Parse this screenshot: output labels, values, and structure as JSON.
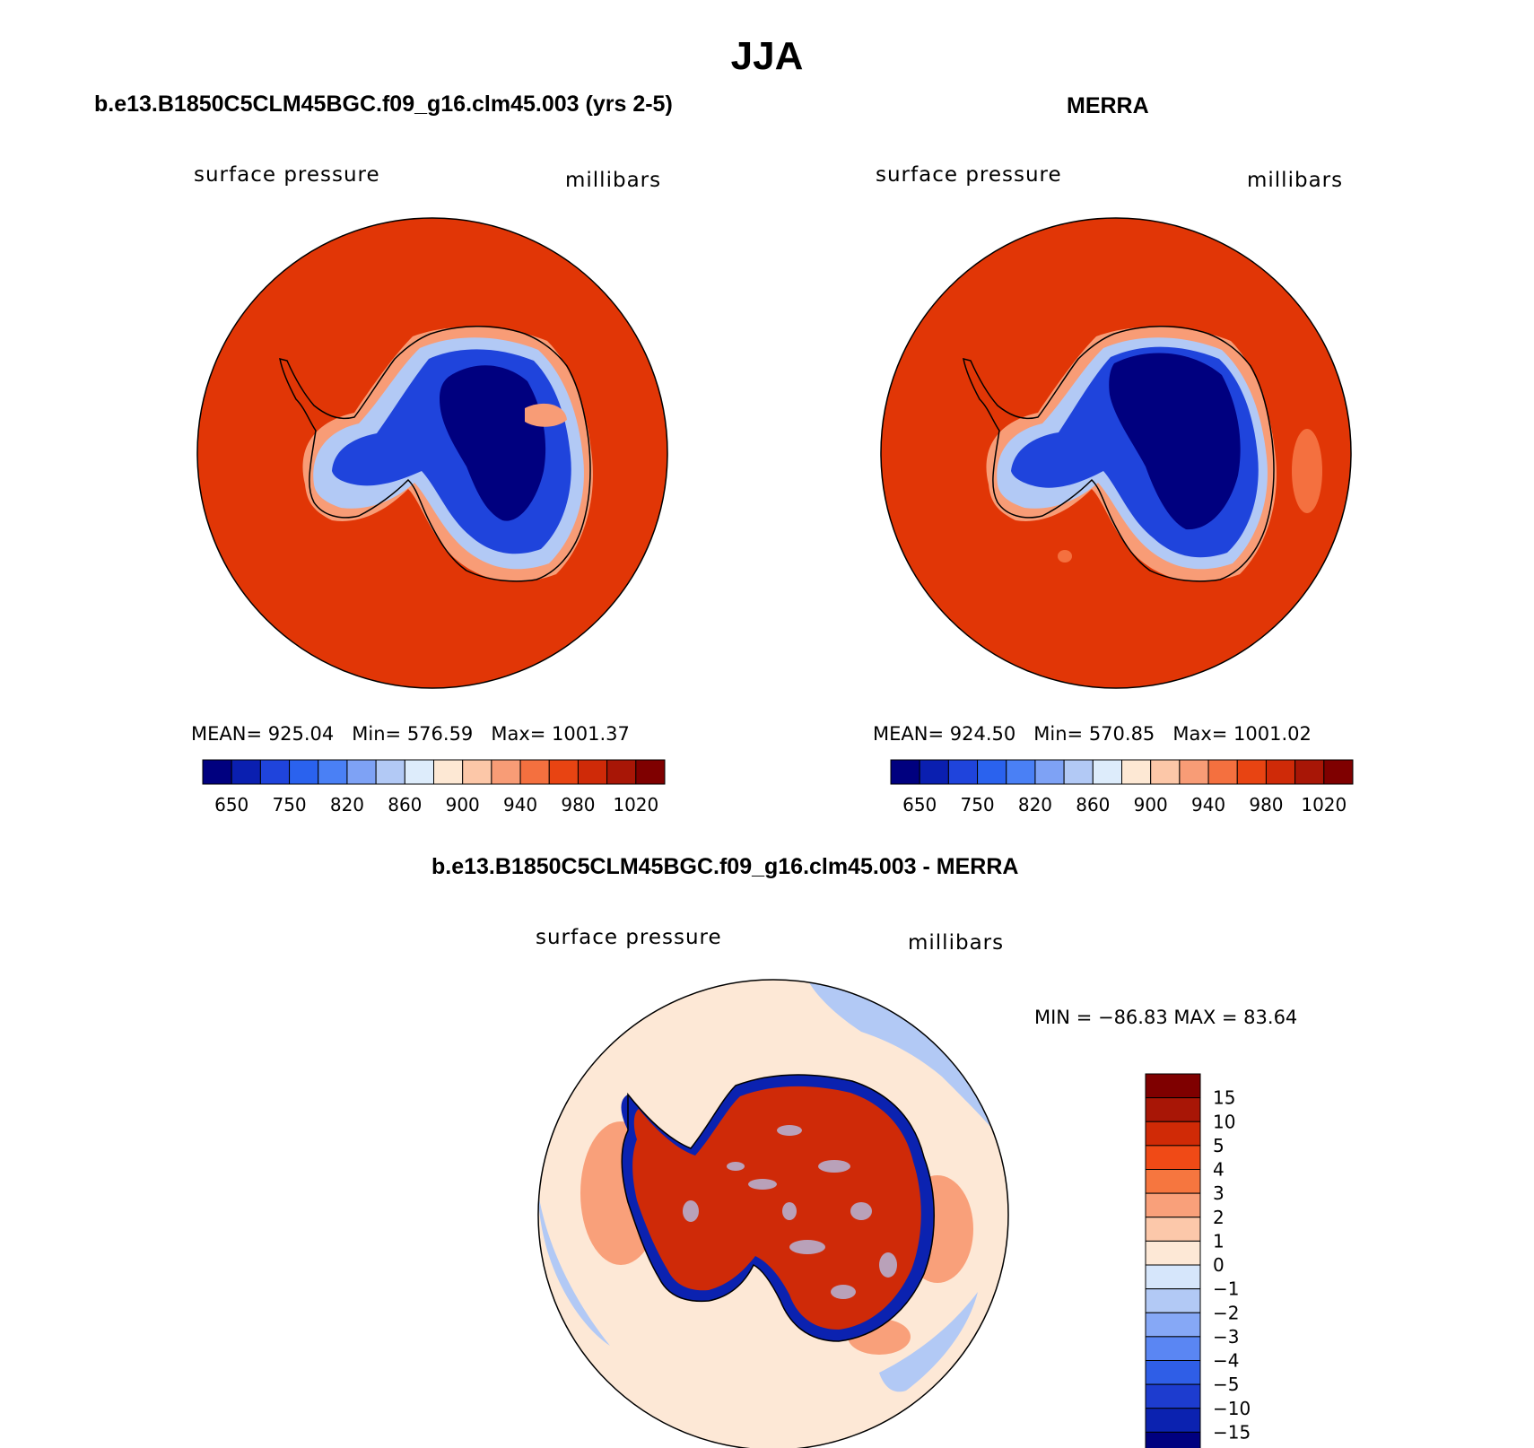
{
  "title": "JJA",
  "panels": [
    {
      "id": "model",
      "title": "b.e13.B1850C5CLM45BGC.f09_g16.clm45.003 (yrs 2-5)",
      "variable": "surface pressure",
      "units": "millibars",
      "mean_label": "MEAN=",
      "mean": "925.04",
      "min_label": "Min=",
      "min": "576.59",
      "max_label": "Max=",
      "max": "1001.37"
    },
    {
      "id": "obs",
      "title": "MERRA",
      "variable": "surface pressure",
      "units": "millibars",
      "mean_label": "MEAN=",
      "mean": "924.50",
      "min_label": "Min=",
      "min": "570.85",
      "max_label": "Max=",
      "max": "1001.02"
    }
  ],
  "diff_panel": {
    "title": "b.e13.B1850C5CLM45BGC.f09_g16.clm45.003 - MERRA",
    "variable": "surface pressure",
    "units": "millibars",
    "minmax_text": "MIN = −86.83 MAX =   83.64"
  },
  "colorbar_abs": {
    "colors": [
      "#00007f",
      "#0a1fb0",
      "#1f44dc",
      "#2a62ee",
      "#4a80f5",
      "#7ea2f5",
      "#b2c9f5",
      "#ddecfb",
      "#fde8d4",
      "#fcc7a8",
      "#f89c76",
      "#f4703f",
      "#e84412",
      "#cf2a08",
      "#a81606",
      "#7f0000"
    ],
    "labels": [
      "650",
      "750",
      "820",
      "860",
      "900",
      "940",
      "980",
      "1020"
    ]
  },
  "colorbar_diff": {
    "colors": [
      "#7f0000",
      "#a81606",
      "#d02a06",
      "#f04a16",
      "#f6763f",
      "#f9a07a",
      "#fcc8aa",
      "#fde8d6",
      "#d6e6fb",
      "#b2c9f5",
      "#86a8f6",
      "#5a86f3",
      "#2f5ee7",
      "#1d3ccf",
      "#0b22b0",
      "#00007f"
    ],
    "labels": [
      "15",
      "10",
      "5",
      "4",
      "3",
      "2",
      "1",
      "0",
      "−1",
      "−2",
      "−3",
      "−4",
      "−5",
      "−10",
      "−15"
    ]
  },
  "map_colors": {
    "ocean": "#e13606",
    "ocean_edge": "#c52a04",
    "interior_deep": "#00007f",
    "interior_mid": "#1f44dc",
    "interior_light": "#4a80f5",
    "coast_light": "#b2c9f5",
    "coast_warm": "#f89c76",
    "diff_bg": "#fde8d6",
    "diff_warm": "#f9a07a",
    "diff_cool": "#b2c9f5",
    "diff_coast_blue": "#0b22b0",
    "diff_land_red": "#cf2a08"
  }
}
